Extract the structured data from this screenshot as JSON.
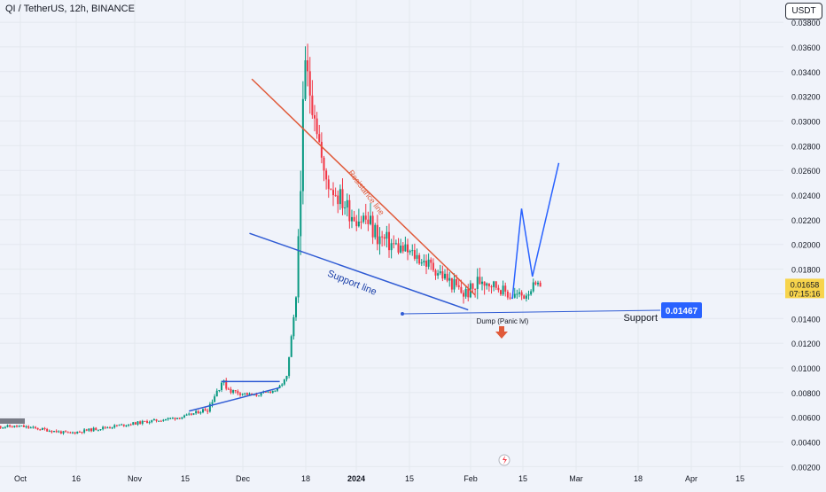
{
  "header": {
    "symbol": "QI / TetherUS, 12h, BINANCE"
  },
  "toolbar": {
    "currency_label": "USDT"
  },
  "colors": {
    "background": "#f0f3fa",
    "up": "#089981",
    "down": "#f23645",
    "resistance_line": "#e05a3a",
    "support_line": "#2f5bd4",
    "projection": "#2962ff",
    "price_tag": "#f7d44c",
    "support_tag": "#2962ff"
  },
  "chart_data": {
    "type": "candlestick",
    "x_tick_labels": [
      "Oct",
      "16",
      "Nov",
      "15",
      "Dec",
      "18",
      "2024",
      "15",
      "Feb",
      "15",
      "Mar",
      "18",
      "Apr",
      "15"
    ],
    "y_tick_labels": [
      "0.03800",
      "0.03600",
      "0.03400",
      "0.03200",
      "0.03000",
      "0.02800",
      "0.02600",
      "0.02400",
      "0.02200",
      "0.02000",
      "0.01800",
      "0.01600",
      "0.01400",
      "0.01200",
      "0.01000",
      "0.00800",
      "0.00600",
      "0.00400",
      "0.00200"
    ],
    "y_ticks": [
      0.038,
      0.036,
      0.034,
      0.032,
      0.03,
      0.028,
      0.026,
      0.024,
      0.022,
      0.02,
      0.018,
      0.016,
      0.014,
      0.012,
      0.01,
      0.008,
      0.006,
      0.004,
      0.002
    ],
    "ylim": [
      0.0016,
      0.0398
    ],
    "current_price": {
      "value": "0.01658",
      "countdown": "07:15:16"
    },
    "support_level": {
      "value": 0.01467,
      "label": "0.01467"
    },
    "annotations": {
      "resistance": "Resistance line",
      "support": "Support line",
      "dump": "Dump (Panic lvl)",
      "support_right": "Support"
    },
    "anchors": [
      [
        0,
        0.0053,
        0.0052
      ],
      [
        10,
        0.0054,
        0.0051
      ],
      [
        20,
        0.0051,
        0.0049
      ],
      [
        30,
        0.0047,
        0.0047
      ],
      [
        45,
        0.0051,
        0.0052
      ],
      [
        60,
        0.0055,
        0.0056
      ],
      [
        80,
        0.006,
        0.0061
      ],
      [
        90,
        0.0071,
        0.0063
      ],
      [
        96,
        0.0095,
        0.0083
      ],
      [
        100,
        0.0085,
        0.0078
      ],
      [
        110,
        0.008,
        0.0075
      ],
      [
        120,
        0.0083,
        0.0082
      ],
      [
        124,
        0.0096,
        0.0088
      ],
      [
        128,
        0.016,
        0.015
      ],
      [
        130,
        0.029,
        0.023
      ],
      [
        132,
        0.037,
        0.031
      ],
      [
        136,
        0.033,
        0.029
      ],
      [
        140,
        0.027,
        0.024
      ],
      [
        144,
        0.026,
        0.023
      ],
      [
        148,
        0.025,
        0.022
      ],
      [
        152,
        0.024,
        0.021
      ],
      [
        158,
        0.024,
        0.02
      ],
      [
        164,
        0.022,
        0.019
      ],
      [
        172,
        0.021,
        0.0185
      ],
      [
        180,
        0.02,
        0.018
      ],
      [
        188,
        0.019,
        0.017
      ],
      [
        194,
        0.018,
        0.016
      ],
      [
        200,
        0.017,
        0.015
      ],
      [
        204,
        0.0175,
        0.0152
      ],
      [
        208,
        0.019,
        0.0158
      ],
      [
        214,
        0.0172,
        0.016
      ],
      [
        220,
        0.0168,
        0.015
      ],
      [
        226,
        0.0165,
        0.0152
      ],
      [
        230,
        0.0172,
        0.016
      ],
      [
        233,
        0.017,
        0.0164
      ]
    ],
    "projection": [
      [
        0.01559,
        0
      ],
      [
        0.0229,
        6
      ],
      [
        0.0174,
        13
      ],
      [
        0.0266,
        30
      ]
    ],
    "resistance_line": {
      "from": [
        109,
        0.0334
      ],
      "to": [
        205,
        0.0159
      ]
    },
    "support_line": {
      "from": [
        108,
        0.0209
      ],
      "to": [
        202,
        0.0147
      ]
    },
    "triangle_upper": {
      "from": [
        96,
        0.0089
      ],
      "to": [
        121,
        0.0089
      ]
    },
    "triangle_lower": {
      "from": [
        82,
        0.0065
      ],
      "to": [
        121,
        0.0084
      ]
    }
  }
}
